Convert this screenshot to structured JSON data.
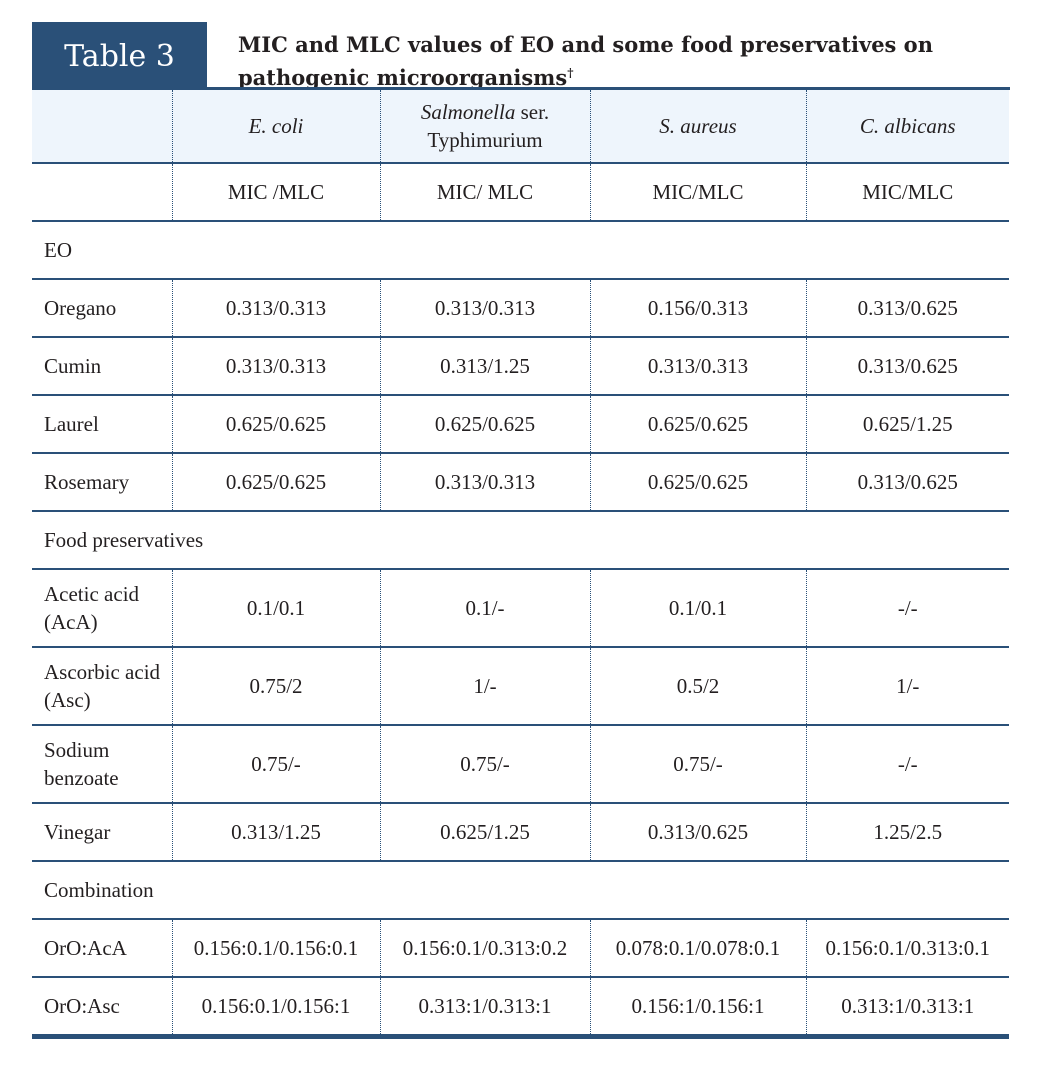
{
  "table_label": "Table 3",
  "caption": "MIC and MLC values of EO and some food preservatives on pathogenic microorganisms",
  "caption_mark": "†",
  "colors": {
    "accent": "#2a5078",
    "header_bg": "#eef5fc"
  },
  "columns": {
    "c1": "E. coli",
    "c2_italic": "Salmonella",
    "c2_rest": " ser.",
    "c2_line2": "Typhimurium",
    "c3": "S. aureus",
    "c4": "C. albicans"
  },
  "units": [
    "MIC /MLC",
    "MIC/ MLC",
    "MIC/MLC",
    "MIC/MLC"
  ],
  "sections": {
    "eo": "EO",
    "food": "Food preservatives",
    "combo": "Combination"
  },
  "rows": {
    "oregano": [
      "Oregano",
      "0.313/0.313",
      "0.313/0.313",
      "0.156/0.313",
      "0.313/0.625"
    ],
    "cumin": [
      "Cumin",
      "0.313/0.313",
      "0.313/1.25",
      "0.313/0.313",
      "0.313/0.625"
    ],
    "laurel": [
      "Laurel",
      "0.625/0.625",
      "0.625/0.625",
      "0.625/0.625",
      "0.625/1.25"
    ],
    "rosemary": [
      "Rosemary",
      "0.625/0.625",
      "0.313/0.313",
      "0.625/0.625",
      "0.313/0.625"
    ],
    "acetic": [
      "Acetic acid (AcA)",
      "0.1/0.1",
      "0.1/-",
      "0.1/0.1",
      "-/-"
    ],
    "ascorbic": [
      "Ascorbic acid (Asc)",
      "0.75/2",
      "1/-",
      "0.5/2",
      "1/-"
    ],
    "sodium": [
      "Sodium benzoate",
      "0.75/-",
      "0.75/-",
      "0.75/-",
      "-/-"
    ],
    "vinegar": [
      "Vinegar",
      "0.313/1.25",
      "0.625/1.25",
      "0.313/0.625",
      "1.25/2.5"
    ],
    "oro_aca": [
      "OrO:AcA",
      "0.156:0.1/0.156:0.1",
      "0.156:0.1/0.313:0.2",
      "0.078:0.1/0.078:0.1",
      "0.156:0.1/0.313:0.1"
    ],
    "oro_asc": [
      "OrO:Asc",
      "0.156:0.1/0.156:1",
      "0.313:1/0.313:1",
      "0.156:1/0.156:1",
      "0.313:1/0.313:1"
    ]
  }
}
